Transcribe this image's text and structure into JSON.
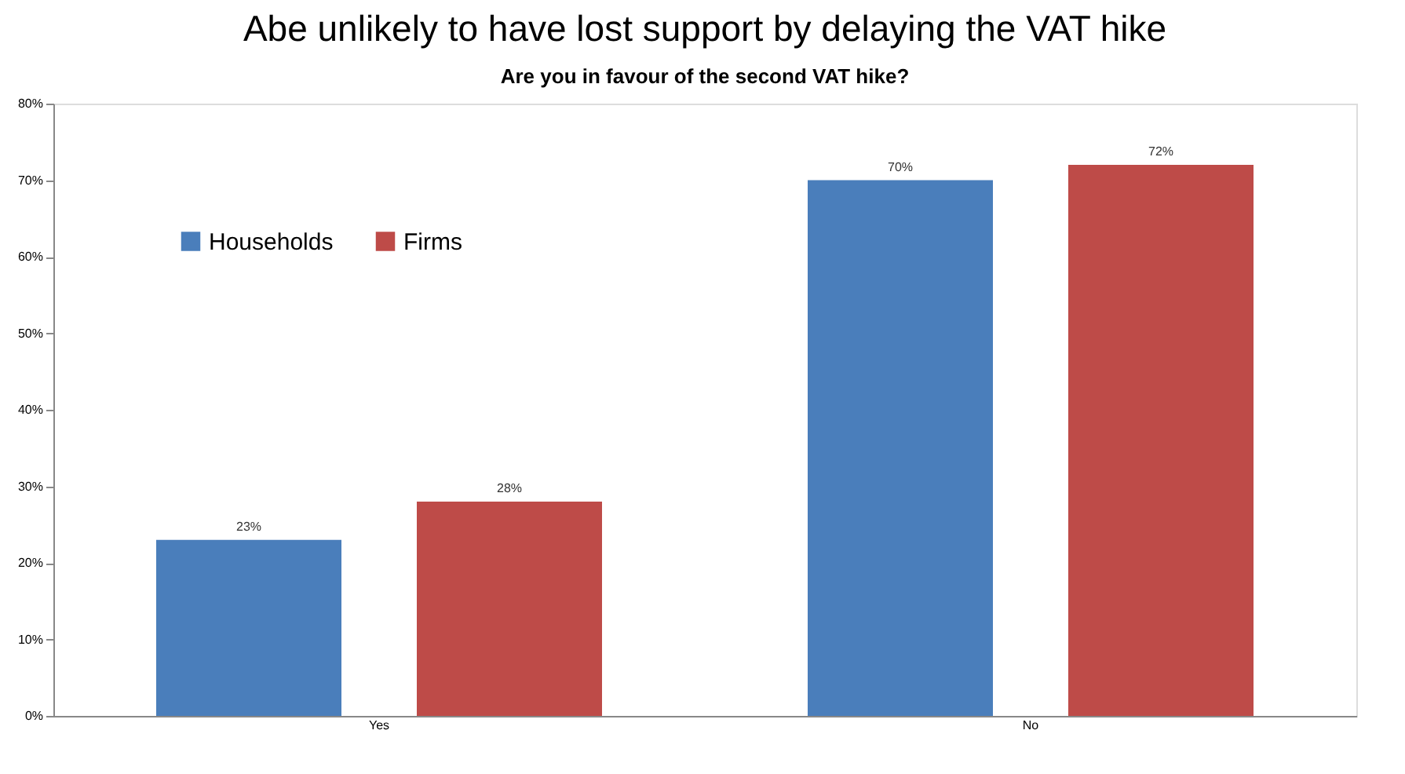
{
  "chart_data": {
    "type": "bar",
    "title": "Abe unlikely to have lost support by delaying the VAT  hike",
    "subtitle": "Are you in favour of the second VAT hike?",
    "categories": [
      "Yes",
      "No"
    ],
    "series": [
      {
        "name": "Households",
        "color": "#4a7ebb",
        "values": [
          23,
          70
        ],
        "value_labels": [
          "23%",
          "70%"
        ]
      },
      {
        "name": "Firms",
        "color": "#be4b48",
        "values": [
          28,
          72
        ],
        "value_labels": [
          "28%",
          "72%"
        ]
      }
    ],
    "ylim": [
      0,
      80
    ],
    "yticks": [
      {
        "value": 0,
        "label": "0%"
      },
      {
        "value": 10,
        "label": "10%"
      },
      {
        "value": 20,
        "label": "20%"
      },
      {
        "value": 30,
        "label": "30%"
      },
      {
        "value": 40,
        "label": "40%"
      },
      {
        "value": 50,
        "label": "50%"
      },
      {
        "value": 60,
        "label": "60%"
      },
      {
        "value": 70,
        "label": "70%"
      },
      {
        "value": 80,
        "label": "80%"
      }
    ],
    "grid": false,
    "legend": "top left"
  }
}
